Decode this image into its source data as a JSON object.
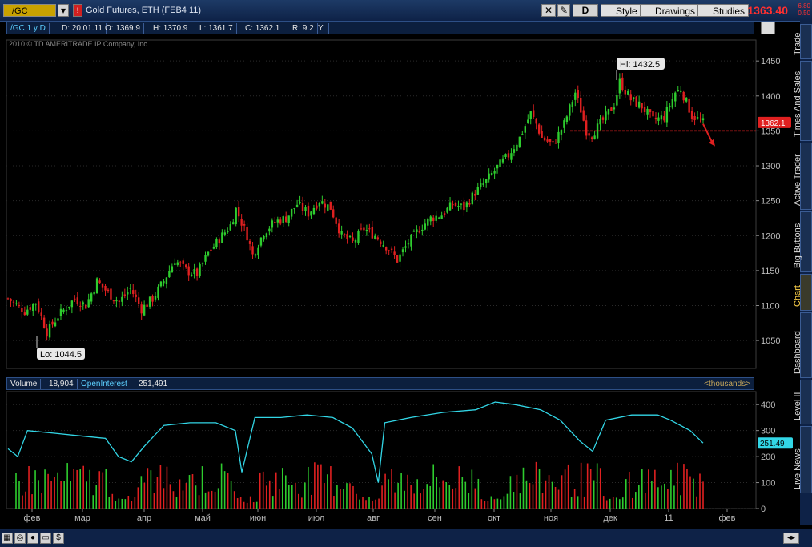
{
  "toolbar": {
    "symbol": "/GC",
    "description": "Gold Futures, ETH (FEB4 11)",
    "aggregation_button": "D",
    "style_label": "Style",
    "drawings_label": "Drawings",
    "studies_label": "Studies",
    "last_price": "1363.40",
    "change_top": "6.80",
    "change_bottom": "0.50"
  },
  "infobar": {
    "symbol_period": "/GC 1 y D",
    "date": "D: 20.01.11",
    "open": "O: 1369.9",
    "high": "H: 1370.9",
    "low": "L: 1361.7",
    "close": "C: 1362.1",
    "range": "R: 9.2",
    "y": "Y:"
  },
  "copyright": "2010 © TD AMERITRADE IP Company, Inc.",
  "volbar": {
    "volume_label": "Volume",
    "volume_value": "18,904",
    "oi_label": "OpenInterest",
    "oi_value": "251,491",
    "units": "<thousands>"
  },
  "side_tabs": [
    "Trade",
    "Times And Sales",
    "Active Trader",
    "Big Buttons",
    "Chart",
    "Dashboard",
    "Level II",
    "Live News"
  ],
  "active_tab": "Chart",
  "colors": {
    "up": "#2ecc2e",
    "down": "#e02020",
    "oi_line": "#32d6e6",
    "price_tag": "#e02020"
  },
  "chart_data": {
    "type": "candlestick",
    "price_axis": {
      "ticks": [
        1050,
        1100,
        1150,
        1200,
        1250,
        1300,
        1350,
        1400,
        1450
      ],
      "ylim": [
        1010,
        1480
      ]
    },
    "x_tick_labels": [
      "фев",
      "мар",
      "апр",
      "май",
      "июн",
      "июл",
      "авг",
      "сен",
      "окт",
      "ноя",
      "дек",
      "11",
      "фев"
    ],
    "annotations": {
      "high_label": "Hi: 1432.5",
      "low_label": "Lo: 1044.5",
      "last_tag": "1362.1",
      "support_level": 1350
    },
    "close_path": [
      [
        0,
        1110
      ],
      [
        6,
        1092
      ],
      [
        10,
        1105
      ],
      [
        14,
        1062
      ],
      [
        18,
        1085
      ],
      [
        24,
        1110
      ],
      [
        28,
        1100
      ],
      [
        32,
        1135
      ],
      [
        36,
        1118
      ],
      [
        40,
        1105
      ],
      [
        44,
        1125
      ],
      [
        48,
        1095
      ],
      [
        52,
        1110
      ],
      [
        56,
        1135
      ],
      [
        60,
        1165
      ],
      [
        64,
        1150
      ],
      [
        68,
        1145
      ],
      [
        72,
        1175
      ],
      [
        76,
        1195
      ],
      [
        80,
        1215
      ],
      [
        82,
        1238
      ],
      [
        86,
        1200
      ],
      [
        88,
        1172
      ],
      [
        92,
        1205
      ],
      [
        96,
        1220
      ],
      [
        100,
        1225
      ],
      [
        104,
        1245
      ],
      [
        108,
        1232
      ],
      [
        112,
        1250
      ],
      [
        116,
        1240
      ],
      [
        120,
        1200
      ],
      [
        124,
        1190
      ],
      [
        128,
        1210
      ],
      [
        132,
        1200
      ],
      [
        136,
        1185
      ],
      [
        140,
        1165
      ],
      [
        144,
        1190
      ],
      [
        148,
        1210
      ],
      [
        152,
        1225
      ],
      [
        156,
        1230
      ],
      [
        160,
        1245
      ],
      [
        164,
        1240
      ],
      [
        168,
        1262
      ],
      [
        172,
        1278
      ],
      [
        176,
        1298
      ],
      [
        180,
        1315
      ],
      [
        184,
        1340
      ],
      [
        188,
        1375
      ],
      [
        190,
        1360
      ],
      [
        192,
        1340
      ],
      [
        196,
        1330
      ],
      [
        200,
        1360
      ],
      [
        204,
        1405
      ],
      [
        206,
        1380
      ],
      [
        208,
        1350
      ],
      [
        210,
        1345
      ],
      [
        214,
        1365
      ],
      [
        218,
        1388
      ],
      [
        220,
        1420
      ],
      [
        224,
        1395
      ],
      [
        228,
        1385
      ],
      [
        232,
        1365
      ],
      [
        236,
        1370
      ],
      [
        240,
        1405
      ],
      [
        242,
        1410
      ],
      [
        246,
        1372
      ],
      [
        250,
        1362
      ]
    ],
    "volume_axis": {
      "ticks": [
        0,
        100,
        200,
        300,
        400
      ],
      "ylim": [
        0,
        450
      ],
      "last_oi_tag": "251.49"
    },
    "open_interest_path": [
      [
        0,
        230
      ],
      [
        3,
        200
      ],
      [
        6,
        300
      ],
      [
        14,
        290
      ],
      [
        22,
        280
      ],
      [
        30,
        270
      ],
      [
        34,
        200
      ],
      [
        38,
        180
      ],
      [
        42,
        240
      ],
      [
        48,
        320
      ],
      [
        56,
        330
      ],
      [
        64,
        330
      ],
      [
        70,
        300
      ],
      [
        72,
        140
      ],
      [
        76,
        350
      ],
      [
        84,
        350
      ],
      [
        92,
        360
      ],
      [
        100,
        350
      ],
      [
        106,
        310
      ],
      [
        112,
        210
      ],
      [
        114,
        100
      ],
      [
        116,
        330
      ],
      [
        124,
        350
      ],
      [
        134,
        370
      ],
      [
        144,
        380
      ],
      [
        150,
        410
      ],
      [
        156,
        400
      ],
      [
        164,
        380
      ],
      [
        170,
        340
      ],
      [
        176,
        260
      ],
      [
        180,
        220
      ],
      [
        184,
        340
      ],
      [
        192,
        360
      ],
      [
        200,
        360
      ],
      [
        204,
        340
      ],
      [
        210,
        300
      ],
      [
        214,
        252
      ]
    ]
  }
}
